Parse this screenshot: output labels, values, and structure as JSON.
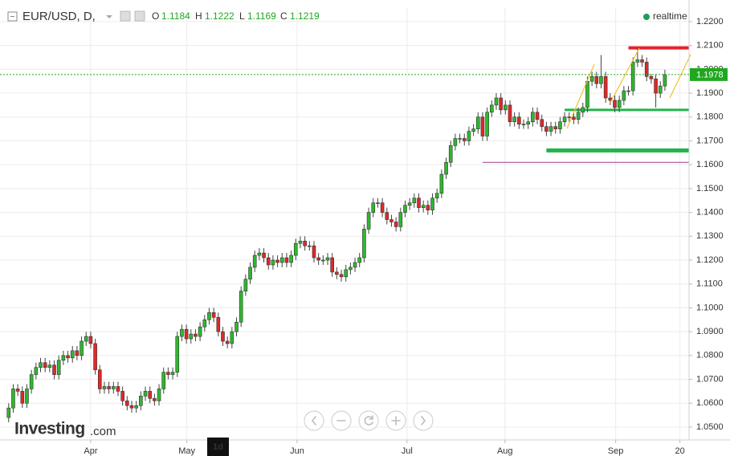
{
  "chart_data": {
    "type": "candlestick",
    "title": "EUR/USD, D,",
    "status": "realtime",
    "brand": "Investing",
    "brand_suffix": ".com",
    "interval_label": "1d",
    "readout": {
      "o_label": "O",
      "open": 1.1184,
      "h_label": "H",
      "high": 1.1222,
      "l_label": "L",
      "low": 1.1169,
      "c_label": "C",
      "close": 1.1219
    },
    "up_color": "#2eb82e",
    "down_color": "#e02828",
    "last_color": "#1fa81f",
    "xlim": [
      -1.9,
      149.3
    ],
    "ylim": [
      1.0446,
      1.2257
    ],
    "grid": true,
    "xticks": [
      {
        "value": 18,
        "label": "Apr"
      },
      {
        "value": 39.1,
        "label": "May"
      },
      {
        "value": 63.3,
        "label": "Jun"
      },
      {
        "value": 87.4,
        "label": "Jul"
      },
      {
        "value": 108.9,
        "label": "Aug"
      },
      {
        "value": 133.2,
        "label": "Sep"
      },
      {
        "value": 147.3,
        "label": "20"
      }
    ],
    "yticks": [
      {
        "value": 1.05,
        "label": "1.0500"
      },
      {
        "value": 1.06,
        "label": "1.0600"
      },
      {
        "value": 1.07,
        "label": "1.0700"
      },
      {
        "value": 1.08,
        "label": "1.0800"
      },
      {
        "value": 1.09,
        "label": "1.0900"
      },
      {
        "value": 1.1,
        "label": "1.1000"
      },
      {
        "value": 1.11,
        "label": "1.1100"
      },
      {
        "value": 1.12,
        "label": "1.1200"
      },
      {
        "value": 1.13,
        "label": "1.1300"
      },
      {
        "value": 1.14,
        "label": "1.1400"
      },
      {
        "value": 1.15,
        "label": "1.1500"
      },
      {
        "value": 1.16,
        "label": "1.1600"
      },
      {
        "value": 1.17,
        "label": "1.1700"
      },
      {
        "value": 1.18,
        "label": "1.1800"
      },
      {
        "value": 1.19,
        "label": "1.1900"
      },
      {
        "value": 1.2,
        "label": "1.2000"
      },
      {
        "value": 1.21,
        "label": "1.2100"
      },
      {
        "value": 1.22,
        "label": "1.2200"
      }
    ],
    "levels": [
      {
        "value": 1.209,
        "color": "#e8202e",
        "from": 136
      },
      {
        "value": 1.183,
        "color": "#22b34a",
        "from": 122
      },
      {
        "value": 1.166,
        "color": "#22b34a",
        "from": 118
      },
      {
        "value": 1.161,
        "color": "#9b3a8a",
        "from": 104
      }
    ],
    "open": [
      1.054,
      1.058,
      1.066,
      1.065,
      1.06,
      1.066,
      1.072,
      1.075,
      1.077,
      1.075,
      1.076,
      1.072,
      1.078,
      1.08,
      1.079,
      1.082,
      1.08,
      1.086,
      1.088,
      1.085,
      1.074,
      1.066,
      1.067,
      1.066,
      1.067,
      1.065,
      1.061,
      1.059,
      1.058,
      1.059,
      1.063,
      1.065,
      1.062,
      1.061,
      1.066,
      1.073,
      1.072,
      1.073,
      1.088,
      1.091,
      1.087,
      1.089,
      1.088,
      1.092,
      1.095,
      1.098,
      1.096,
      1.09,
      1.086,
      1.085,
      1.09,
      1.094,
      1.107,
      1.112,
      1.117,
      1.122,
      1.123,
      1.121,
      1.118,
      1.12,
      1.119,
      1.121,
      1.119,
      1.122,
      1.127,
      1.128,
      1.126,
      1.126,
      1.121,
      1.12,
      1.12,
      1.121,
      1.115,
      1.114,
      1.113,
      1.116,
      1.117,
      1.119,
      1.121,
      1.133,
      1.14,
      1.144,
      1.144,
      1.14,
      1.137,
      1.136,
      1.134,
      1.14,
      1.143,
      1.144,
      1.146,
      1.142,
      1.143,
      1.141,
      1.146,
      1.148,
      1.156,
      1.161,
      1.168,
      1.171,
      1.171,
      1.17,
      1.174,
      1.175,
      1.18,
      1.172,
      1.182,
      1.185,
      1.188,
      1.183,
      1.185,
      1.178,
      1.18,
      1.177,
      1.177,
      1.178,
      1.182,
      1.179,
      1.176,
      1.174,
      1.176,
      1.175,
      1.178,
      1.18,
      1.18,
      1.179,
      1.182,
      1.184,
      1.195,
      1.197,
      1.194,
      1.197,
      1.188,
      1.187,
      1.184,
      1.187,
      1.191,
      1.191,
      1.203,
      1.204,
      1.203,
      1.197,
      1.196,
      1.19,
      1.193
    ],
    "high": [
      1.06,
      1.068,
      1.068,
      1.067,
      1.068,
      1.074,
      1.077,
      1.079,
      1.079,
      1.078,
      1.078,
      1.08,
      1.082,
      1.082,
      1.084,
      1.084,
      1.088,
      1.09,
      1.09,
      1.087,
      1.076,
      1.069,
      1.069,
      1.069,
      1.069,
      1.067,
      1.063,
      1.061,
      1.061,
      1.065,
      1.067,
      1.067,
      1.064,
      1.068,
      1.075,
      1.075,
      1.075,
      1.09,
      1.093,
      1.093,
      1.091,
      1.091,
      1.094,
      1.097,
      1.1,
      1.1,
      1.098,
      1.092,
      1.088,
      1.092,
      1.096,
      1.109,
      1.114,
      1.119,
      1.124,
      1.125,
      1.125,
      1.123,
      1.122,
      1.122,
      1.123,
      1.123,
      1.124,
      1.129,
      1.13,
      1.13,
      1.128,
      1.128,
      1.123,
      1.122,
      1.123,
      1.123,
      1.117,
      1.116,
      1.118,
      1.119,
      1.121,
      1.123,
      1.135,
      1.142,
      1.146,
      1.146,
      1.146,
      1.142,
      1.139,
      1.138,
      1.142,
      1.145,
      1.146,
      1.148,
      1.148,
      1.145,
      1.145,
      1.148,
      1.15,
      1.158,
      1.163,
      1.17,
      1.173,
      1.173,
      1.173,
      1.176,
      1.177,
      1.182,
      1.182,
      1.184,
      1.187,
      1.19,
      1.19,
      1.187,
      1.187,
      1.182,
      1.182,
      1.179,
      1.18,
      1.184,
      1.184,
      1.181,
      1.178,
      1.178,
      1.178,
      1.18,
      1.182,
      1.182,
      1.182,
      1.184,
      1.186,
      1.197,
      1.199,
      1.199,
      1.206,
      1.199,
      1.19,
      1.189,
      1.189,
      1.193,
      1.193,
      1.205,
      1.209,
      1.206,
      1.205,
      1.198,
      1.198,
      1.195,
      1.1998
    ],
    "low": [
      1.052,
      1.056,
      1.063,
      1.058,
      1.058,
      1.064,
      1.07,
      1.073,
      1.073,
      1.073,
      1.07,
      1.07,
      1.076,
      1.077,
      1.077,
      1.078,
      1.078,
      1.084,
      1.083,
      1.072,
      1.064,
      1.064,
      1.064,
      1.064,
      1.063,
      1.059,
      1.057,
      1.056,
      1.056,
      1.057,
      1.061,
      1.06,
      1.059,
      1.059,
      1.064,
      1.07,
      1.07,
      1.071,
      1.086,
      1.085,
      1.085,
      1.086,
      1.086,
      1.09,
      1.093,
      1.094,
      1.088,
      1.084,
      1.083,
      1.083,
      1.088,
      1.092,
      1.105,
      1.11,
      1.115,
      1.12,
      1.119,
      1.116,
      1.116,
      1.117,
      1.117,
      1.117,
      1.117,
      1.12,
      1.125,
      1.124,
      1.124,
      1.119,
      1.118,
      1.118,
      1.118,
      1.113,
      1.112,
      1.111,
      1.111,
      1.114,
      1.115,
      1.117,
      1.119,
      1.131,
      1.138,
      1.142,
      1.138,
      1.135,
      1.134,
      1.132,
      1.132,
      1.138,
      1.141,
      1.142,
      1.14,
      1.14,
      1.139,
      1.139,
      1.144,
      1.146,
      1.154,
      1.159,
      1.166,
      1.169,
      1.168,
      1.168,
      1.172,
      1.173,
      1.17,
      1.17,
      1.18,
      1.183,
      1.181,
      1.181,
      1.176,
      1.176,
      1.175,
      1.175,
      1.175,
      1.176,
      1.177,
      1.174,
      1.172,
      1.172,
      1.173,
      1.173,
      1.176,
      1.178,
      1.177,
      1.177,
      1.18,
      1.182,
      1.193,
      1.192,
      1.192,
      1.186,
      1.185,
      1.182,
      1.182,
      1.185,
      1.189,
      1.189,
      1.201,
      1.201,
      1.195,
      1.194,
      1.184,
      1.188,
      1.191
    ],
    "close": [
      1.058,
      1.066,
      1.065,
      1.06,
      1.066,
      1.072,
      1.075,
      1.077,
      1.075,
      1.076,
      1.072,
      1.078,
      1.08,
      1.079,
      1.082,
      1.08,
      1.086,
      1.088,
      1.085,
      1.074,
      1.066,
      1.067,
      1.066,
      1.067,
      1.065,
      1.061,
      1.059,
      1.058,
      1.059,
      1.063,
      1.065,
      1.062,
      1.061,
      1.066,
      1.073,
      1.072,
      1.073,
      1.088,
      1.091,
      1.087,
      1.089,
      1.088,
      1.092,
      1.095,
      1.098,
      1.096,
      1.09,
      1.086,
      1.085,
      1.09,
      1.094,
      1.107,
      1.112,
      1.117,
      1.122,
      1.123,
      1.121,
      1.118,
      1.12,
      1.119,
      1.121,
      1.119,
      1.122,
      1.127,
      1.128,
      1.126,
      1.126,
      1.121,
      1.12,
      1.12,
      1.121,
      1.115,
      1.114,
      1.113,
      1.116,
      1.117,
      1.119,
      1.121,
      1.133,
      1.14,
      1.144,
      1.144,
      1.14,
      1.137,
      1.136,
      1.134,
      1.14,
      1.143,
      1.144,
      1.146,
      1.142,
      1.143,
      1.141,
      1.146,
      1.148,
      1.156,
      1.161,
      1.168,
      1.171,
      1.171,
      1.17,
      1.174,
      1.175,
      1.18,
      1.172,
      1.182,
      1.185,
      1.188,
      1.183,
      1.185,
      1.178,
      1.18,
      1.177,
      1.177,
      1.178,
      1.182,
      1.179,
      1.176,
      1.174,
      1.176,
      1.175,
      1.178,
      1.18,
      1.18,
      1.179,
      1.182,
      1.184,
      1.195,
      1.197,
      1.194,
      1.197,
      1.188,
      1.187,
      1.184,
      1.187,
      1.191,
      1.191,
      1.203,
      1.204,
      1.203,
      1.197,
      1.196,
      1.19,
      1.193,
      1.1978
    ]
  }
}
